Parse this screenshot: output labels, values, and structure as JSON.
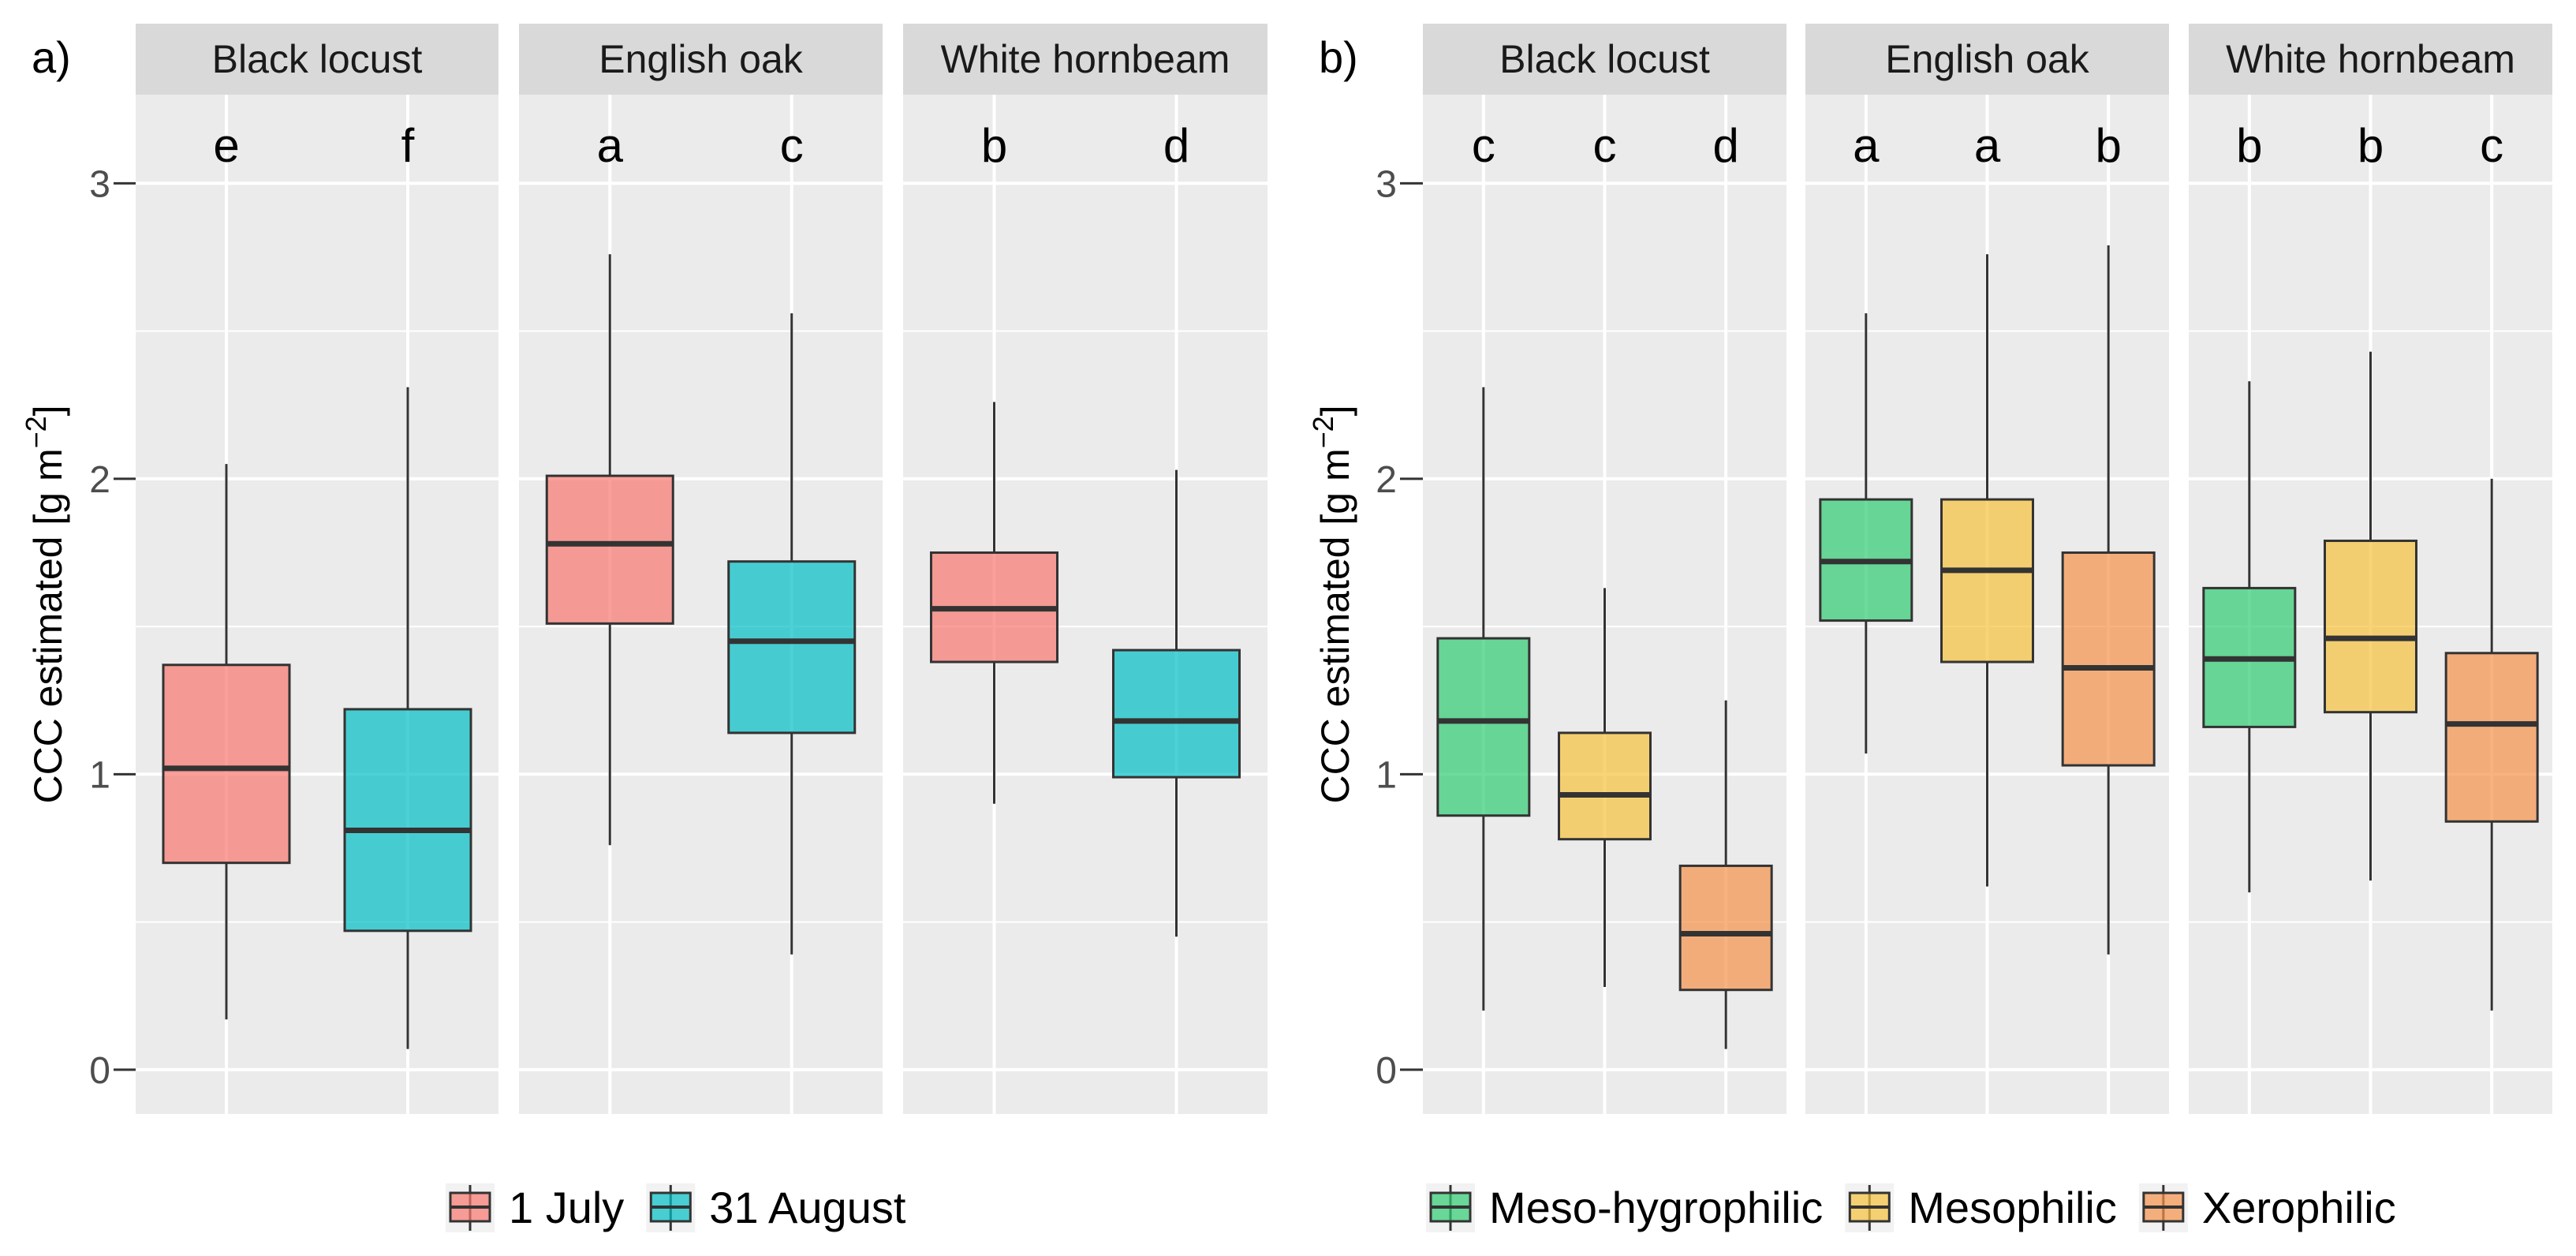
{
  "chart_data": [
    {
      "panel_label": "a)",
      "type": "boxplot",
      "ylabel": "CCC estimated [g m",
      "ylabel_sup": "−2",
      "ylabel_close": "]",
      "ylim": [
        -0.15,
        3.3
      ],
      "yticks": [
        "0",
        "1",
        "2",
        "3"
      ],
      "facets": [
        {
          "title": "Black locust",
          "boxes": [
            {
              "group": "1 July",
              "min": 0.17,
              "q1": 0.7,
              "median": 1.02,
              "q3": 1.37,
              "max": 2.05,
              "letter": "e"
            },
            {
              "group": "31 August",
              "min": 0.07,
              "q1": 0.47,
              "median": 0.81,
              "q3": 1.22,
              "max": 2.31,
              "letter": "f"
            }
          ]
        },
        {
          "title": "English oak",
          "boxes": [
            {
              "group": "1 July",
              "min": 0.76,
              "q1": 1.51,
              "median": 1.78,
              "q3": 2.01,
              "max": 2.76,
              "letter": "a"
            },
            {
              "group": "31 August",
              "min": 0.39,
              "q1": 1.14,
              "median": 1.45,
              "q3": 1.72,
              "max": 2.56,
              "letter": "c"
            }
          ]
        },
        {
          "title": "White hornbeam",
          "boxes": [
            {
              "group": "1 July",
              "min": 0.9,
              "q1": 1.38,
              "median": 1.56,
              "q3": 1.75,
              "max": 2.26,
              "letter": "b"
            },
            {
              "group": "31 August",
              "min": 0.45,
              "q1": 0.99,
              "median": 1.18,
              "q3": 1.42,
              "max": 2.03,
              "letter": "d"
            }
          ]
        }
      ],
      "legend": [
        {
          "label": "1 July",
          "color": "#F8766D"
        },
        {
          "label": "31 August",
          "color": "#00BFC4"
        }
      ]
    },
    {
      "panel_label": "b)",
      "type": "boxplot",
      "ylabel": "CCC estimated [g m",
      "ylabel_sup": "−2",
      "ylabel_close": "]",
      "ylim": [
        -0.15,
        3.3
      ],
      "yticks": [
        "0",
        "1",
        "2",
        "3"
      ],
      "facets": [
        {
          "title": "Black locust",
          "boxes": [
            {
              "group": "Meso-hygrophilic",
              "min": 0.2,
              "q1": 0.86,
              "median": 1.18,
              "q3": 1.46,
              "max": 2.31,
              "letter": "c"
            },
            {
              "group": "Mesophilic",
              "min": 0.28,
              "q1": 0.78,
              "median": 0.93,
              "q3": 1.14,
              "max": 1.63,
              "letter": "c"
            },
            {
              "group": "Xerophilic",
              "min": 0.07,
              "q1": 0.27,
              "median": 0.46,
              "q3": 0.69,
              "max": 1.25,
              "letter": "d"
            }
          ]
        },
        {
          "title": "English oak",
          "boxes": [
            {
              "group": "Meso-hygrophilic",
              "min": 1.07,
              "q1": 1.52,
              "median": 1.72,
              "q3": 1.93,
              "max": 2.56,
              "letter": "a"
            },
            {
              "group": "Mesophilic",
              "min": 0.62,
              "q1": 1.38,
              "median": 1.69,
              "q3": 1.93,
              "max": 2.76,
              "letter": "a"
            },
            {
              "group": "Xerophilic",
              "min": 0.39,
              "q1": 1.03,
              "median": 1.36,
              "q3": 1.75,
              "max": 2.79,
              "letter": "b"
            }
          ]
        },
        {
          "title": "White hornbeam",
          "boxes": [
            {
              "group": "Meso-hygrophilic",
              "min": 0.6,
              "q1": 1.16,
              "median": 1.39,
              "q3": 1.63,
              "max": 2.33,
              "letter": "b"
            },
            {
              "group": "Mesophilic",
              "min": 0.64,
              "q1": 1.21,
              "median": 1.46,
              "q3": 1.79,
              "max": 2.43,
              "letter": "b"
            },
            {
              "group": "Xerophilic",
              "min": 0.2,
              "q1": 0.84,
              "median": 1.17,
              "q3": 1.41,
              "max": 2.0,
              "letter": "c"
            }
          ]
        }
      ],
      "legend": [
        {
          "label": "Meso-hygrophilic",
          "color": "#2ECC71"
        },
        {
          "label": "Mesophilic",
          "color": "#F7C23C"
        },
        {
          "label": "Xerophilic",
          "color": "#F5914A"
        }
      ]
    }
  ]
}
